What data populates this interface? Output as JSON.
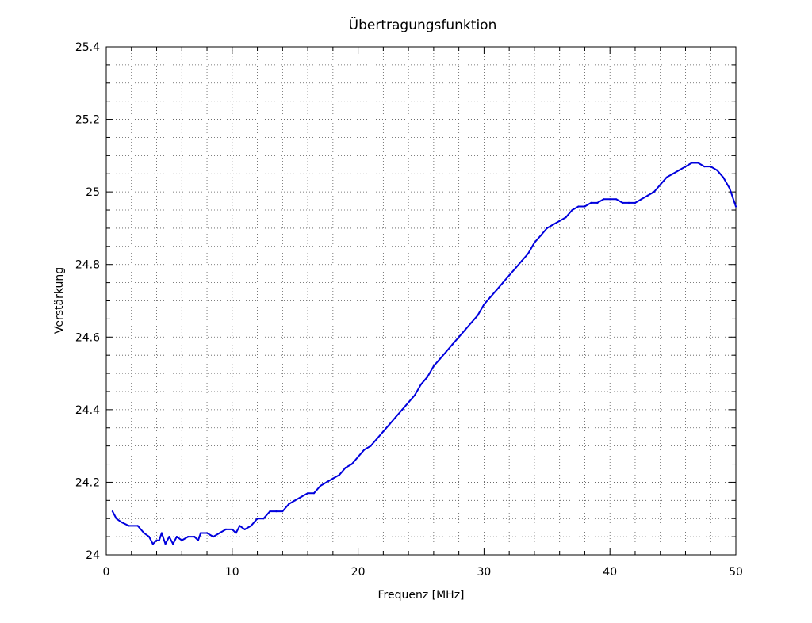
{
  "chart_data": {
    "type": "line",
    "title": "Übertragungsfunktion",
    "xlabel": "Frequenz [MHz]",
    "ylabel": "Verstärkung",
    "xlim": [
      0,
      50
    ],
    "ylim": [
      24,
      25.4
    ],
    "x_ticks": [
      "0",
      "10",
      "20",
      "30",
      "40",
      "50"
    ],
    "y_ticks": [
      "24",
      "24.2",
      "24.4",
      "24.6",
      "24.8",
      "25",
      "25.2",
      "25.4"
    ],
    "grid": true,
    "legend": "none",
    "colors": {
      "line": "#0000dd",
      "grid": "#555555",
      "axis": "#000000"
    },
    "series": [
      {
        "x": [
          0.5,
          0.8,
          1.2,
          1.8,
          2.5,
          3.0,
          3.4,
          3.7,
          4.0,
          4.2,
          4.4,
          4.7,
          5.0,
          5.3,
          5.6,
          6.0,
          6.5,
          7.0,
          7.3,
          7.5,
          8.0,
          8.5,
          9.0,
          9.5,
          10.0,
          10.3,
          10.6,
          11.0,
          11.5,
          12.0,
          12.5,
          13.0,
          13.5,
          14.0,
          14.5,
          15.0,
          16.0,
          16.5,
          17.0,
          17.5,
          18.0,
          18.5,
          19.0,
          19.5,
          20.0,
          20.5,
          21.0,
          21.5,
          22.0,
          22.5,
          23.0,
          23.5,
          24.0,
          24.5,
          25.0,
          25.5,
          26.0,
          26.5,
          27.0,
          27.5,
          28.0,
          28.5,
          29.0,
          29.5,
          30.0,
          30.5,
          31.0,
          31.5,
          32.0,
          32.5,
          33.0,
          33.5,
          34.0,
          34.5,
          35.0,
          35.5,
          36.0,
          36.5,
          37.0,
          37.5,
          38.0,
          38.5,
          39.0,
          39.5,
          40.0,
          40.5,
          41.0,
          41.5,
          42.0,
          42.5,
          43.0,
          43.5,
          44.0,
          44.5,
          45.0,
          45.5,
          46.0,
          46.5,
          47.0,
          47.5,
          48.0,
          48.5,
          49.0,
          49.5,
          50.0
        ],
        "values": [
          24.12,
          24.1,
          24.09,
          24.08,
          24.08,
          24.06,
          24.05,
          24.03,
          24.04,
          24.04,
          24.06,
          24.03,
          24.05,
          24.03,
          24.05,
          24.04,
          24.05,
          24.05,
          24.04,
          24.06,
          24.06,
          24.05,
          24.06,
          24.07,
          24.07,
          24.06,
          24.08,
          24.07,
          24.08,
          24.1,
          24.1,
          24.12,
          24.12,
          24.12,
          24.14,
          24.15,
          24.17,
          24.17,
          24.19,
          24.2,
          24.21,
          24.22,
          24.24,
          24.25,
          24.27,
          24.29,
          24.3,
          24.32,
          24.34,
          24.36,
          24.38,
          24.4,
          24.42,
          24.44,
          24.47,
          24.49,
          24.52,
          24.54,
          24.56,
          24.58,
          24.6,
          24.62,
          24.64,
          24.66,
          24.69,
          24.71,
          24.73,
          24.75,
          24.77,
          24.79,
          24.81,
          24.83,
          24.86,
          24.88,
          24.9,
          24.91,
          24.92,
          24.93,
          24.95,
          24.96,
          24.96,
          24.97,
          24.97,
          24.98,
          24.98,
          24.98,
          24.97,
          24.97,
          24.97,
          24.98,
          24.99,
          25.0,
          25.02,
          25.04,
          25.05,
          25.06,
          25.07,
          25.08,
          25.08,
          25.07,
          25.07,
          25.06,
          25.04,
          25.01,
          24.96
        ]
      }
    ]
  }
}
